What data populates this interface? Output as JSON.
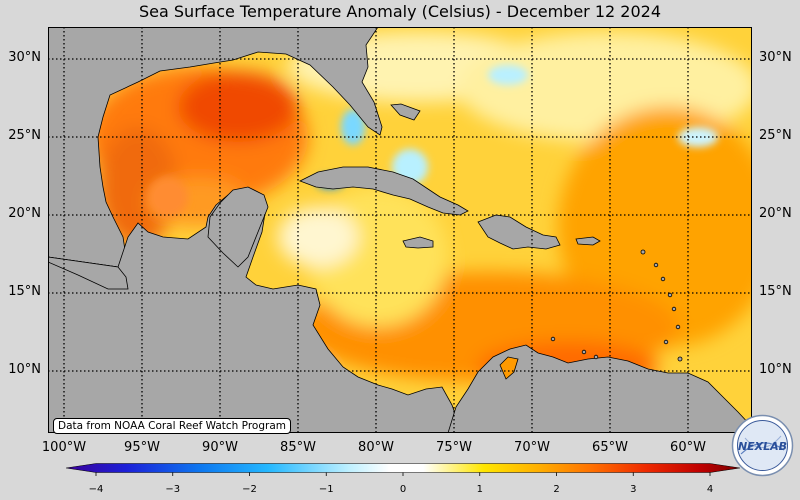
{
  "title": "Sea Surface Temperature Anomaly (Celsius) - December 12 2024",
  "credit": "Data from NOAA Coral Reef Watch Program",
  "logo_text": "NEXLAB",
  "lat_labels": [
    "30°N",
    "25°N",
    "20°N",
    "15°N",
    "10°N"
  ],
  "lon_labels": [
    "100°W",
    "95°W",
    "90°W",
    "85°W",
    "80°W",
    "75°W",
    "70°W",
    "65°W",
    "60°W"
  ],
  "colorbar": {
    "ticks": [
      "−4",
      "−3",
      "−2",
      "−1",
      "0",
      "1",
      "2",
      "3",
      "4"
    ],
    "min": -4,
    "max": 4,
    "colors": [
      "#3b0099",
      "#1c20d8",
      "#0d78f0",
      "#25b8ff",
      "#9fe8ff",
      "#ffffff",
      "#ffffff",
      "#ffe600",
      "#ffb000",
      "#ff7000",
      "#ee2a00",
      "#c00000",
      "#7a0000"
    ]
  },
  "map_colors": {
    "land": "#a7a7a7",
    "grid": "#000000",
    "warm": "#ffb300",
    "hot": "#f26200",
    "cold": "#1630e0",
    "cool": "#a9ecff"
  }
}
